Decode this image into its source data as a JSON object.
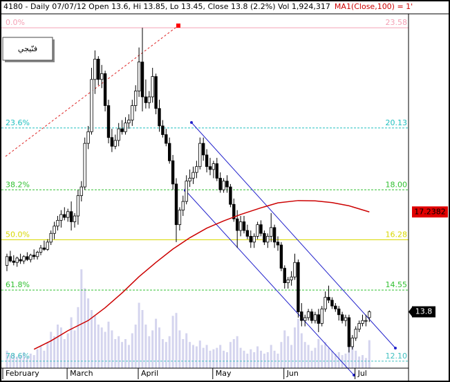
{
  "chart_data": {
    "type": "candlestick",
    "title": "4180 - Daily 07/07/12 Open 13.6, Hi 13.85, Lo 13.45, Close 13.8 (2.2%) Vol 1,924,317",
    "indicator_title": "MA1(Close,100) = 1'",
    "annotation": "فنّيجي",
    "ylim": [
      11.86,
      23.82
    ],
    "xticks": [
      {
        "value": 0,
        "label": "February"
      },
      {
        "value": 19,
        "label": "March"
      },
      {
        "value": 40,
        "label": "April"
      },
      {
        "value": 62,
        "label": "May"
      },
      {
        "value": 83,
        "label": "Jun"
      },
      {
        "value": 104,
        "label": "Jul"
      }
    ],
    "up_color": "#ffffff",
    "down_color": "#000000",
    "open": [
      15.4,
      15.7,
      15.55,
      15.5,
      15.6,
      15.55,
      15.7,
      15.6,
      15.75,
      15.7,
      15.85,
      16,
      15.95,
      16.2,
      16.5,
      16.75,
      16.95,
      17.15,
      17.05,
      17.25,
      16.9,
      17.1,
      17.8,
      18.1,
      19.6,
      20,
      21.8,
      22.5,
      21.8,
      22,
      20.9,
      19.8,
      19.5,
      19.7,
      20.1,
      20,
      20.3,
      20.4,
      20.9,
      21.4,
      22.4,
      21.2,
      21,
      21.2,
      21.9,
      20.8,
      20.2,
      19.9,
      19.6,
      19,
      18.2,
      16.8,
      17.3,
      17.6,
      18.3,
      18.4,
      18.6,
      18.8,
      19.6,
      19.2,
      18.8,
      18.7,
      18.9,
      18.4,
      18,
      18.3,
      18.1,
      17.5,
      17,
      16.6,
      16.9,
      16.6,
      16.4,
      16.2,
      16.4,
      16.8,
      16.5,
      16.2,
      16.4,
      16.7,
      16.2,
      16.1,
      15.3,
      14.8,
      14.9,
      15,
      15.5,
      13.8,
      13.5,
      13.6,
      13.8,
      13.5,
      13.7,
      13.4,
      13.9,
      14.3,
      14.2,
      14,
      13.9,
      13.7,
      13.5,
      13.6,
      12.6,
      12.9,
      13.2,
      13.4,
      13.5,
      13.6
    ],
    "high": [
      15.8,
      15.9,
      15.75,
      15.7,
      15.8,
      15.75,
      15.85,
      15.8,
      15.95,
      15.9,
      16.1,
      16.25,
      16.3,
      16.6,
      16.9,
      17.1,
      17.3,
      17.4,
      17.35,
      17.6,
      17.2,
      18,
      18.3,
      19.8,
      20.2,
      22.2,
      22.8,
      22.6,
      22.3,
      22.1,
      21.1,
      20.1,
      19.9,
      20.3,
      20.4,
      20.5,
      20.6,
      21.1,
      21.6,
      22.9,
      23.58,
      21.8,
      21.4,
      22.2,
      22,
      21.1,
      20.4,
      20.1,
      19.8,
      19.2,
      18.4,
      17.4,
      17.8,
      18.5,
      18.7,
      18.8,
      19,
      19.8,
      19.8,
      19.4,
      19.1,
      19,
      19.1,
      18.6,
      18.4,
      18.5,
      18.2,
      17.7,
      17.3,
      17.1,
      17.1,
      16.8,
      16.6,
      16.5,
      16.9,
      16.95,
      16.6,
      16.5,
      17.2,
      16.8,
      16.4,
      16.2,
      15.4,
      15,
      15.2,
      15.8,
      15.6,
      14.1,
      13.7,
      13.9,
      13.9,
      13.8,
      13.9,
      14,
      14.5,
      14.7,
      14.3,
      14.1,
      14,
      13.8,
      13.7,
      13.7,
      13,
      13.3,
      13.5,
      13.7,
      13.7,
      13.85
    ],
    "low": [
      15.2,
      15.5,
      15.4,
      15.35,
      15.45,
      15.45,
      15.55,
      15.5,
      15.6,
      15.6,
      15.75,
      15.9,
      15.9,
      16.1,
      16.3,
      16.6,
      16.7,
      16.95,
      16.9,
      16.6,
      16.7,
      16.8,
      17.6,
      18,
      19.4,
      19.9,
      21.3,
      21.6,
      21.5,
      20.7,
      19.6,
      19.3,
      19.4,
      19.5,
      19.9,
      19.9,
      20.1,
      20.2,
      20.7,
      21.2,
      20.7,
      20.8,
      20.8,
      21,
      20.6,
      20,
      19.8,
      19.5,
      18.9,
      18,
      16.2,
      16.6,
      17.1,
      17.5,
      18.1,
      18.2,
      18.4,
      18.7,
      19,
      18.6,
      18.5,
      18.4,
      18.3,
      17.9,
      17.9,
      17.9,
      17.4,
      16.9,
      16,
      16.4,
      16.5,
      16.3,
      16,
      16,
      16.3,
      16.4,
      16.1,
      16,
      16.2,
      16,
      15.9,
      15.2,
      14.6,
      14.6,
      14.7,
      14.9,
      13.6,
      13.3,
      13.3,
      13.5,
      13.4,
      13.4,
      13.1,
      13.3,
      13.8,
      14.1,
      13.9,
      13.8,
      13.5,
      13.4,
      13.3,
      12.4,
      12.5,
      12.8,
      13.1,
      13.3,
      13.3,
      13.45
    ],
    "close": [
      15.7,
      15.55,
      15.5,
      15.65,
      15.55,
      15.7,
      15.6,
      15.75,
      15.7,
      15.85,
      16,
      15.95,
      16.2,
      16.5,
      16.75,
      16.95,
      17.15,
      17.05,
      17.25,
      16.9,
      17.1,
      17.8,
      18.1,
      19.6,
      20,
      21.8,
      22.5,
      21.8,
      22,
      20.9,
      19.8,
      19.5,
      19.7,
      20.1,
      20,
      20.3,
      20.4,
      20.9,
      21.4,
      22.4,
      21.2,
      21,
      21.2,
      21.9,
      20.8,
      20.2,
      19.9,
      19.6,
      19,
      18.2,
      16.8,
      17.3,
      17.6,
      18.3,
      18.4,
      18.6,
      18.8,
      19.6,
      19.2,
      18.8,
      18.7,
      18.9,
      18.4,
      18,
      18.3,
      18.1,
      17.5,
      17,
      16.6,
      16.9,
      16.6,
      16.4,
      16.2,
      16.4,
      16.8,
      16.5,
      16.2,
      16.4,
      16.7,
      16.2,
      16.1,
      15.3,
      14.8,
      14.9,
      15,
      15.5,
      13.8,
      13.5,
      13.6,
      13.8,
      13.5,
      13.7,
      13.4,
      13.9,
      14.3,
      14.2,
      14,
      13.9,
      13.7,
      13.5,
      13.6,
      12.6,
      12.9,
      13.2,
      13.4,
      13.5,
      13.5,
      13.8
    ],
    "volume": [
      1200000,
      900000,
      1000000,
      800000,
      900000,
      1100000,
      800000,
      1000000,
      900000,
      1300000,
      1500000,
      1200000,
      1800000,
      2500000,
      2200000,
      3000000,
      2800000,
      2000000,
      2400000,
      3500000,
      2600000,
      4200000,
      6800000,
      5500000,
      4800000,
      4000000,
      3600000,
      3000000,
      2800000,
      2500000,
      3200000,
      2600000,
      2000000,
      2200000,
      1800000,
      2000000,
      1600000,
      2400000,
      3000000,
      4500000,
      4000000,
      3000000,
      2200000,
      2600000,
      3400000,
      2800000,
      2000000,
      1800000,
      2200000,
      3600000,
      3800000,
      2600000,
      2000000,
      2400000,
      1800000,
      1600000,
      1500000,
      1900000,
      1400000,
      1600000,
      1200000,
      1300000,
      1400000,
      1600000,
      1200000,
      1100000,
      1800000,
      2000000,
      2200000,
      1400000,
      1200000,
      1000000,
      1300000,
      1100000,
      1500000,
      1200000,
      1000000,
      1100000,
      1600000,
      1200000,
      1000000,
      1800000,
      2600000,
      2200000,
      1600000,
      2800000,
      3400000,
      2400000,
      1800000,
      1600000,
      1200000,
      1400000,
      2000000,
      1600000,
      1800000,
      1400000,
      1200000,
      1000000,
      1100000,
      900000,
      1000000,
      2400000,
      1600000,
      1200000,
      800000,
      900000,
      700000,
      1924317
    ],
    "volume_lim": [
      0,
      12000000
    ],
    "volume_color": "#d4d4ee",
    "ma": {
      "name": "MA1(Close,100)",
      "color": "#cc0000",
      "x": [
        8,
        13,
        18,
        24,
        29,
        34,
        39,
        44,
        49,
        54,
        59,
        64,
        69,
        75,
        80,
        86,
        91,
        96,
        101,
        107
      ],
      "values": [
        12.51,
        12.8,
        13.15,
        13.5,
        13.94,
        14.45,
        15.01,
        15.5,
        15.96,
        16.35,
        16.68,
        16.93,
        17.15,
        17.38,
        17.55,
        17.63,
        17.62,
        17.56,
        17.45,
        17.2382
      ]
    },
    "fib_levels": [
      {
        "name": "0.0%",
        "value": 23.58,
        "color": "#f4a0b4"
      },
      {
        "name": "23.6%",
        "value": 20.13,
        "color": "#20c0c0"
      },
      {
        "name": "38.2%",
        "value": 18,
        "value_label": "18.00",
        "color": "#30c030"
      },
      {
        "name": "50.0%",
        "value": 16.28,
        "color": "#d8d800"
      },
      {
        "name": "61.8%",
        "value": 14.55,
        "color": "#30c030"
      },
      {
        "name": "78.6%",
        "value": 12.1,
        "value_label": "12.10",
        "color": "#40c0c0"
      }
    ]
  }
}
